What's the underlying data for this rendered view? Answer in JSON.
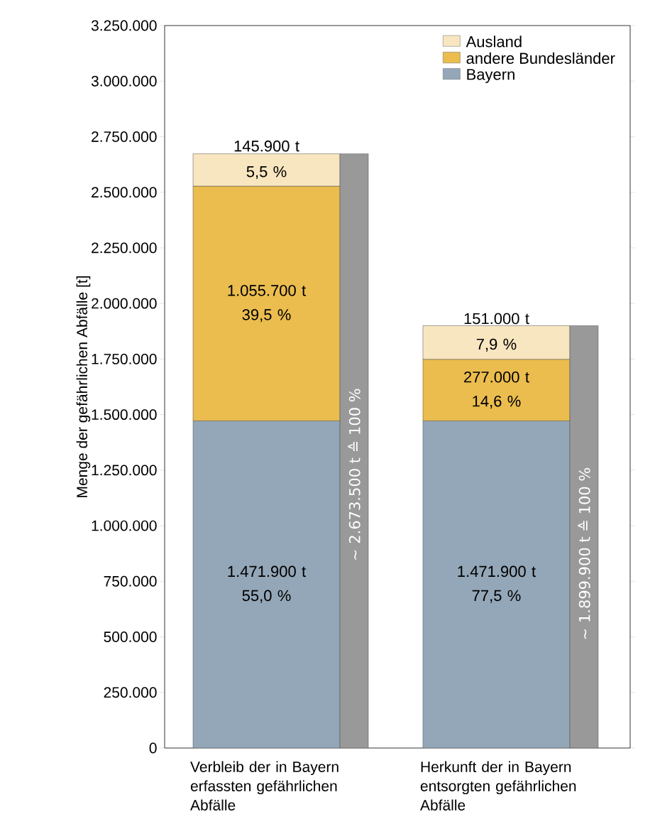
{
  "chart_data": {
    "type": "bar",
    "ylabel": "Menge der gefährlichen Abfälle [t]",
    "categories": [
      "Verbleib der in Bayern erfassten gefährlichen Abfälle",
      "Herkunft der in Bayern entsorgten gefährlichen Abfälle"
    ],
    "series": [
      {
        "name": "Bayern",
        "color": "#94a7b8",
        "base": [
          0,
          0
        ],
        "values": [
          1471900,
          1471900
        ],
        "value_labels": [
          "1.471.900 t 55,0 %",
          "1.471.900 t 77,5 %"
        ]
      },
      {
        "name": "andere Bundesländer",
        "color": "#ebbd4e",
        "base": [
          1471900,
          1471900
        ],
        "values": [
          1055700,
          277000
        ],
        "value_labels": [
          "1.055.700 t 39,5 %",
          "277.000 t 14,6 %"
        ]
      },
      {
        "name": "Ausland",
        "color": "#f8e6c0",
        "base": [
          2527600,
          1748900
        ],
        "values": [
          145900,
          151000
        ],
        "value_labels": [
          "145.900 t 5,5 %",
          "151.000 t 7,9 %"
        ]
      },
      {
        "color": "#999999",
        "base": [
          0,
          0
        ],
        "values": [
          2673500,
          1899900
        ],
        "value_labels": [
          "~ 2.673.500 t ≙ 100 %",
          "~ 1.899.900 t ≙ 100 %"
        ]
      }
    ],
    "ylim": [
      0,
      3250000
    ],
    "yticks": [
      0,
      {
        "value": 250000,
        "label": "250.000"
      },
      {
        "value": 500000,
        "label": "500.000"
      },
      {
        "value": 750000,
        "label": "750.000"
      },
      {
        "value": 1000000,
        "label": "1.000.000"
      },
      {
        "value": 1250000,
        "label": "1.250.000"
      },
      {
        "value": 1500000,
        "label": "1.500.000"
      },
      {
        "value": 1750000,
        "label": "1.750.000"
      },
      {
        "value": 2000000,
        "label": "2.000.000"
      },
      {
        "value": 2250000,
        "label": "2.250.000"
      },
      {
        "value": 2500000,
        "label": "2.500.000"
      },
      {
        "value": 2750000,
        "label": "2.750.000"
      },
      {
        "value": 3000000,
        "label": "3.000.000"
      },
      {
        "value": 3250000,
        "label": "3.250.000"
      }
    ],
    "legend": "top right"
  }
}
